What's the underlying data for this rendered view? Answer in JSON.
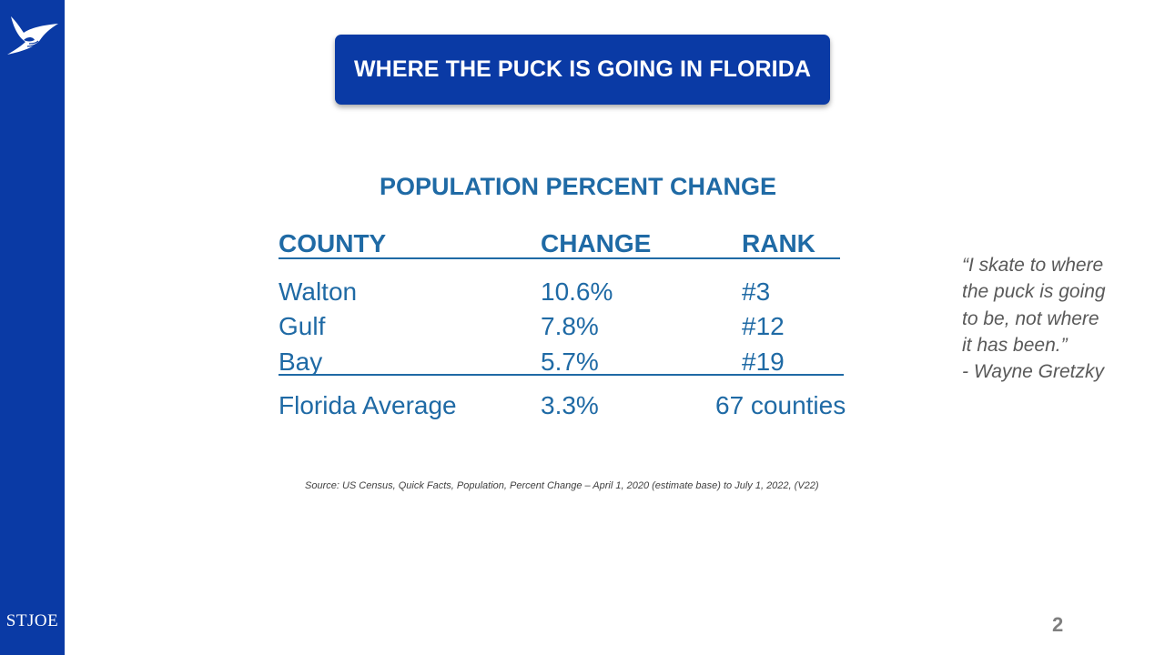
{
  "brand": {
    "name": "ST JOE",
    "st": "ST",
    "joe": "JOE"
  },
  "slide_title": "WHERE THE PUCK IS GOING IN FLORIDA",
  "table": {
    "title": "POPULATION PERCENT CHANGE",
    "headers": {
      "county": "COUNTY",
      "change": "CHANGE",
      "rank": "RANK"
    },
    "rows": [
      {
        "county": "Walton",
        "change": "10.6%",
        "rank": "#3"
      },
      {
        "county": "Gulf",
        "change": "7.8%",
        "rank": "#12"
      },
      {
        "county": "Bay",
        "change": "5.7%",
        "rank": "#19"
      }
    ],
    "summary": {
      "county": "Florida Average",
      "change": "3.3%",
      "rank": "67 counties"
    }
  },
  "quote": {
    "lines": [
      "“I skate to where",
      "the puck is going",
      "to be, not where",
      "it has been.”"
    ],
    "attribution": "- Wayne Gretzky"
  },
  "source": "Source:  US Census, Quick Facts, Population, Percent Change – April 1, 2020 (estimate base) to July 1, 2022, (V22)",
  "page_number": "2",
  "colors": {
    "brand_blue": "#0a3aa5",
    "table_text": "#1f6aa5",
    "quote_text": "#595959"
  }
}
